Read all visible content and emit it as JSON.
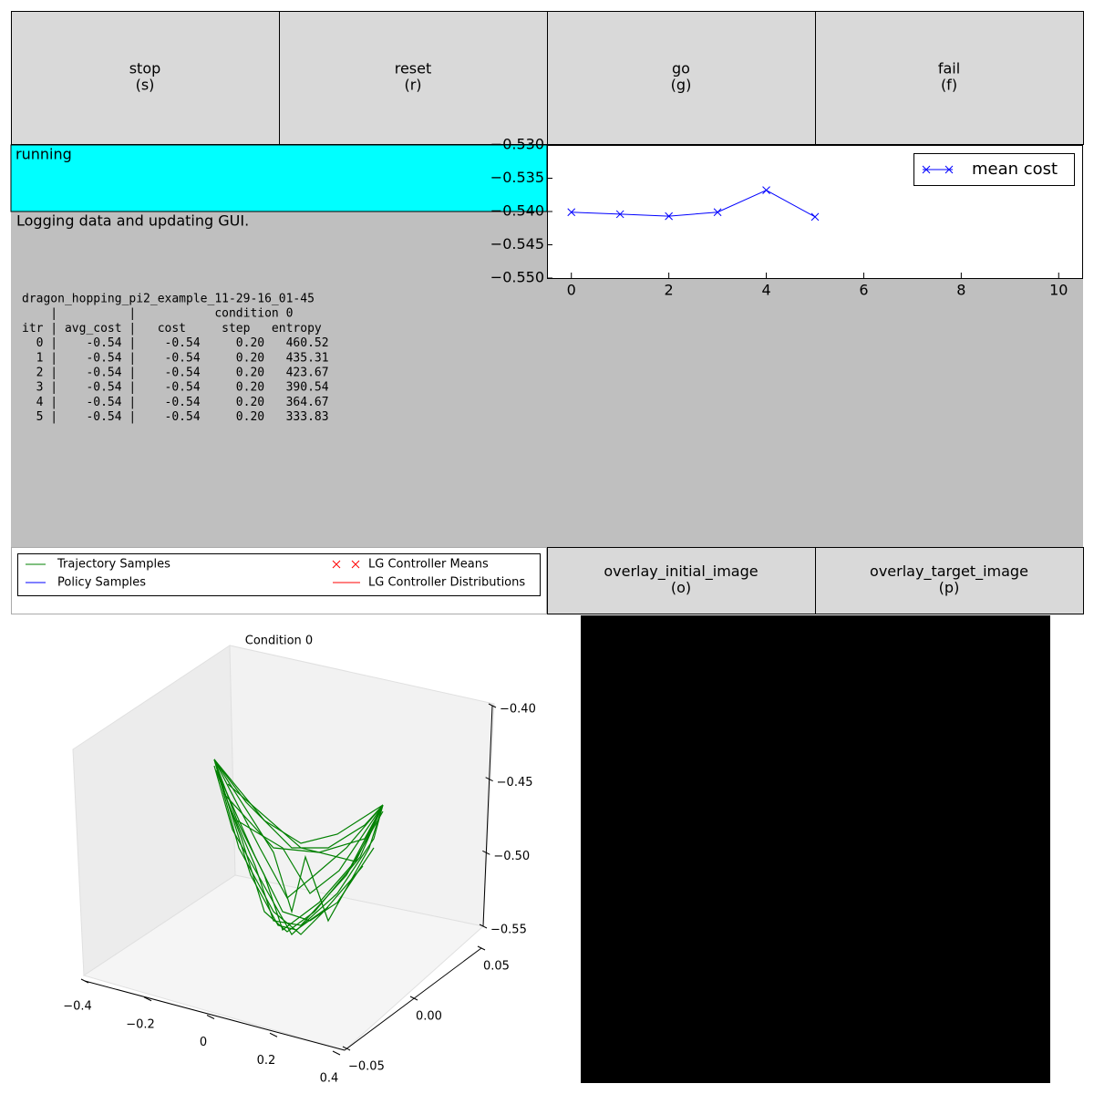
{
  "buttons": [
    {
      "label": "stop",
      "key": "(s)"
    },
    {
      "label": "reset",
      "key": "(r)"
    },
    {
      "label": "go",
      "key": "(g)"
    },
    {
      "label": "fail",
      "key": "(f)"
    }
  ],
  "status": "running",
  "message": "Logging data and updating GUI.",
  "log": {
    "lines": [
      "dragon_hopping_pi2_example_11-29-16_01-45",
      "    |          |           condition 0",
      "itr | avg_cost |   cost     step   entropy",
      "  0 |    -0.54 |    -0.54     0.20   460.52",
      "  1 |    -0.54 |    -0.54     0.20   435.31",
      "  2 |    -0.54 |    -0.54     0.20   423.67",
      "  3 |    -0.54 |    -0.54     0.20   390.54",
      "  4 |    -0.54 |    -0.54     0.20   364.67",
      "  5 |    -0.54 |    -0.54     0.20   333.83"
    ]
  },
  "legend": {
    "items": [
      {
        "label": "Trajectory Samples",
        "color": "#008000"
      },
      {
        "label": "Policy Samples",
        "color": "#0000ff"
      },
      {
        "label": "LG Controller Means",
        "color": "#ff0000",
        "marker": "x"
      },
      {
        "label": "LG Controller Distributions",
        "color": "#ff0000"
      }
    ]
  },
  "image_buttons": [
    {
      "label": "overlay_initial_image",
      "key": "(o)"
    },
    {
      "label": "overlay_target_image",
      "key": "(p)"
    }
  ],
  "chart_data": [
    {
      "type": "line",
      "x": [
        0,
        1,
        2,
        3,
        4,
        5
      ],
      "series": [
        {
          "name": "mean cost",
          "color": "#0000ff",
          "marker": "x",
          "values": [
            -0.5401,
            -0.5404,
            -0.5407,
            -0.5401,
            -0.5368,
            -0.5408
          ]
        }
      ],
      "xlim": [
        -0.5,
        10.5
      ],
      "xticks": [
        0,
        2,
        4,
        6,
        8,
        10
      ],
      "ylim": [
        -0.55,
        -0.53
      ],
      "yticks": [
        {
          "value": -0.53,
          "label": "−0.530"
        },
        {
          "value": -0.535,
          "label": "−0.535"
        },
        {
          "value": -0.54,
          "label": "−0.540"
        },
        {
          "value": -0.545,
          "label": "−0.545"
        },
        {
          "value": -0.55,
          "label": "−0.550"
        }
      ],
      "legend": "upper right"
    },
    {
      "type": "line3d",
      "title": "Condition 0",
      "xlim": [
        -0.4,
        0.4
      ],
      "xticks": [
        {
          "value": -0.4,
          "label": "−0.4"
        },
        {
          "value": -0.2,
          "label": "−0.2"
        },
        0.0,
        0.2,
        0.4
      ],
      "ylim": [
        -0.05,
        0.05
      ],
      "yticks": [
        {
          "value": -0.05,
          "label": "−0.05"
        },
        {
          "value": 0.0,
          "label": "0.00"
        },
        0.05
      ],
      "zlim": [
        -0.55,
        -0.4
      ],
      "zticks": [
        {
          "value": -0.4,
          "label": "−0.40"
        },
        {
          "value": -0.45,
          "label": "−0.45"
        },
        {
          "value": -0.5,
          "label": "−0.50"
        },
        {
          "value": -0.55,
          "label": "−0.55"
        }
      ]
    }
  ]
}
